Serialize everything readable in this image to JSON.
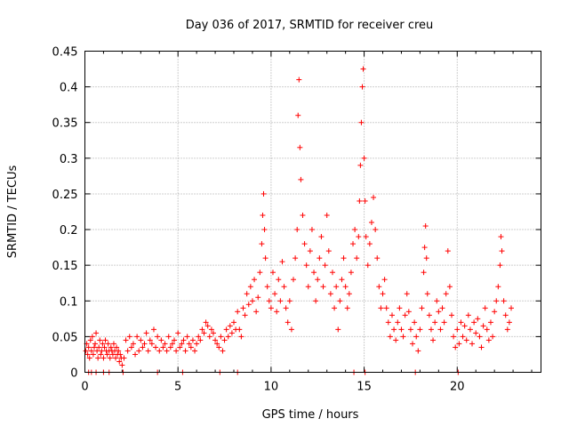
{
  "chart_data": {
    "type": "scatter",
    "title": "Day 036 of 2017, SRMTID for receiver creu",
    "xlabel": "GPS time / hours",
    "ylabel": "SRMTID / TECUs",
    "xlim": [
      0,
      24.5
    ],
    "ylim": [
      0,
      0.45
    ],
    "x_ticks": [
      0,
      5,
      10,
      15,
      20
    ],
    "x_tick_labels": [
      "0",
      "5",
      "10",
      "15",
      "20"
    ],
    "y_ticks": [
      0,
      0.05,
      0.1,
      0.15,
      0.2,
      0.25,
      0.3,
      0.35,
      0.4,
      0.45
    ],
    "y_tick_labels": [
      "0",
      "0.05",
      "0.1",
      "0.15",
      "0.2",
      "0.25",
      "0.3",
      "0.35",
      "0.4",
      "0.45"
    ],
    "grid": true,
    "marker": "plus",
    "color": "#ff0000",
    "series": [
      {
        "name": "SRMTID",
        "points": [
          [
            0.05,
            0.03
          ],
          [
            0.1,
            0.04
          ],
          [
            0.15,
            0.025
          ],
          [
            0.2,
            0.035
          ],
          [
            0.25,
            0.02
          ],
          [
            0.3,
            0.045
          ],
          [
            0.35,
            0.03
          ],
          [
            0.4,
            0.05
          ],
          [
            0.45,
            0.025
          ],
          [
            0.5,
            0.035
          ],
          [
            0.55,
            0.04
          ],
          [
            0.6,
            0.055
          ],
          [
            0.65,
            0.03
          ],
          [
            0.7,
            0.02
          ],
          [
            0.75,
            0.035
          ],
          [
            0.8,
            0.045
          ],
          [
            0.85,
            0.025
          ],
          [
            0.9,
            0.03
          ],
          [
            0.95,
            0.04
          ],
          [
            1.0,
            0.02
          ],
          [
            1.05,
            0.035
          ],
          [
            1.1,
            0.045
          ],
          [
            1.15,
            0.03
          ],
          [
            1.2,
            0.025
          ],
          [
            1.25,
            0.04
          ],
          [
            1.3,
            0.03
          ],
          [
            1.35,
            0.02
          ],
          [
            1.4,
            0.035
          ],
          [
            1.45,
            0.03
          ],
          [
            1.5,
            0.025
          ],
          [
            1.55,
            0.04
          ],
          [
            1.6,
            0.03
          ],
          [
            1.65,
            0.02
          ],
          [
            1.7,
            0.035
          ],
          [
            1.75,
            0.025
          ],
          [
            1.8,
            0.03
          ],
          [
            1.85,
            0.015
          ],
          [
            1.9,
            0.025
          ],
          [
            1.95,
            0.02
          ],
          [
            2.0,
            0.01
          ],
          [
            2.1,
            0.02
          ],
          [
            2.2,
            0.045
          ],
          [
            2.3,
            0.03
          ],
          [
            2.4,
            0.05
          ],
          [
            2.5,
            0.035
          ],
          [
            2.6,
            0.04
          ],
          [
            2.7,
            0.025
          ],
          [
            2.8,
            0.05
          ],
          [
            2.9,
            0.03
          ],
          [
            3.0,
            0.045
          ],
          [
            3.1,
            0.035
          ],
          [
            3.2,
            0.04
          ],
          [
            3.3,
            0.055
          ],
          [
            3.4,
            0.03
          ],
          [
            3.5,
            0.045
          ],
          [
            3.6,
            0.04
          ],
          [
            3.7,
            0.06
          ],
          [
            3.8,
            0.035
          ],
          [
            3.9,
            0.05
          ],
          [
            4.0,
            0.03
          ],
          [
            4.1,
            0.045
          ],
          [
            4.2,
            0.035
          ],
          [
            4.3,
            0.04
          ],
          [
            4.4,
            0.03
          ],
          [
            4.5,
            0.05
          ],
          [
            4.6,
            0.035
          ],
          [
            4.7,
            0.04
          ],
          [
            4.8,
            0.045
          ],
          [
            4.9,
            0.03
          ],
          [
            5.0,
            0.055
          ],
          [
            5.1,
            0.035
          ],
          [
            5.2,
            0.04
          ],
          [
            5.3,
            0.045
          ],
          [
            5.4,
            0.03
          ],
          [
            5.5,
            0.05
          ],
          [
            5.6,
            0.04
          ],
          [
            5.7,
            0.035
          ],
          [
            5.8,
            0.045
          ],
          [
            5.9,
            0.03
          ],
          [
            6.0,
            0.04
          ],
          [
            6.1,
            0.05
          ],
          [
            6.2,
            0.045
          ],
          [
            6.3,
            0.06
          ],
          [
            6.4,
            0.055
          ],
          [
            6.5,
            0.07
          ],
          [
            6.6,
            0.065
          ],
          [
            6.7,
            0.05
          ],
          [
            6.8,
            0.06
          ],
          [
            6.9,
            0.055
          ],
          [
            7.0,
            0.045
          ],
          [
            7.1,
            0.04
          ],
          [
            7.2,
            0.035
          ],
          [
            7.3,
            0.05
          ],
          [
            7.4,
            0.03
          ],
          [
            7.5,
            0.045
          ],
          [
            7.6,
            0.06
          ],
          [
            7.7,
            0.05
          ],
          [
            7.8,
            0.065
          ],
          [
            7.9,
            0.055
          ],
          [
            8.0,
            0.07
          ],
          [
            8.1,
            0.06
          ],
          [
            8.2,
            0.085
          ],
          [
            8.3,
            0.06
          ],
          [
            8.4,
            0.05
          ],
          [
            8.5,
            0.09
          ],
          [
            8.6,
            0.08
          ],
          [
            8.7,
            0.11
          ],
          [
            8.8,
            0.095
          ],
          [
            8.9,
            0.12
          ],
          [
            9.0,
            0.1
          ],
          [
            9.1,
            0.13
          ],
          [
            9.2,
            0.085
          ],
          [
            9.3,
            0.105
          ],
          [
            9.4,
            0.14
          ],
          [
            9.5,
            0.18
          ],
          [
            9.55,
            0.22
          ],
          [
            9.6,
            0.25
          ],
          [
            9.65,
            0.2
          ],
          [
            9.7,
            0.16
          ],
          [
            9.8,
            0.12
          ],
          [
            9.9,
            0.1
          ],
          [
            10.0,
            0.09
          ],
          [
            10.1,
            0.14
          ],
          [
            10.2,
            0.11
          ],
          [
            10.3,
            0.085
          ],
          [
            10.4,
            0.13
          ],
          [
            10.5,
            0.1
          ],
          [
            10.6,
            0.155
          ],
          [
            10.7,
            0.12
          ],
          [
            10.8,
            0.09
          ],
          [
            10.9,
            0.07
          ],
          [
            11.0,
            0.1
          ],
          [
            11.1,
            0.06
          ],
          [
            11.2,
            0.13
          ],
          [
            11.3,
            0.16
          ],
          [
            11.4,
            0.2
          ],
          [
            11.45,
            0.36
          ],
          [
            11.5,
            0.41
          ],
          [
            11.55,
            0.315
          ],
          [
            11.6,
            0.27
          ],
          [
            11.7,
            0.22
          ],
          [
            11.8,
            0.18
          ],
          [
            11.9,
            0.15
          ],
          [
            12.0,
            0.12
          ],
          [
            12.1,
            0.17
          ],
          [
            12.2,
            0.2
          ],
          [
            12.3,
            0.14
          ],
          [
            12.4,
            0.1
          ],
          [
            12.5,
            0.13
          ],
          [
            12.6,
            0.16
          ],
          [
            12.7,
            0.19
          ],
          [
            12.8,
            0.12
          ],
          [
            12.9,
            0.15
          ],
          [
            13.0,
            0.22
          ],
          [
            13.1,
            0.17
          ],
          [
            13.2,
            0.11
          ],
          [
            13.3,
            0.14
          ],
          [
            13.4,
            0.09
          ],
          [
            13.5,
            0.12
          ],
          [
            13.6,
            0.06
          ],
          [
            13.7,
            0.1
          ],
          [
            13.8,
            0.13
          ],
          [
            13.9,
            0.16
          ],
          [
            14.0,
            0.12
          ],
          [
            14.1,
            0.09
          ],
          [
            14.2,
            0.11
          ],
          [
            14.3,
            0.14
          ],
          [
            14.4,
            0.18
          ],
          [
            14.5,
            0.2
          ],
          [
            14.6,
            0.16
          ],
          [
            14.7,
            0.19
          ],
          [
            14.75,
            0.24
          ],
          [
            14.8,
            0.29
          ],
          [
            14.85,
            0.35
          ],
          [
            14.9,
            0.4
          ],
          [
            14.95,
            0.425
          ],
          [
            15.0,
            0.3
          ],
          [
            15.05,
            0.24
          ],
          [
            15.1,
            0.19
          ],
          [
            15.2,
            0.15
          ],
          [
            15.3,
            0.18
          ],
          [
            15.4,
            0.21
          ],
          [
            15.5,
            0.245
          ],
          [
            15.6,
            0.2
          ],
          [
            15.7,
            0.16
          ],
          [
            15.8,
            0.12
          ],
          [
            15.9,
            0.09
          ],
          [
            16.0,
            0.11
          ],
          [
            16.1,
            0.13
          ],
          [
            16.2,
            0.09
          ],
          [
            16.3,
            0.07
          ],
          [
            16.4,
            0.05
          ],
          [
            16.5,
            0.08
          ],
          [
            16.6,
            0.06
          ],
          [
            16.7,
            0.045
          ],
          [
            16.8,
            0.07
          ],
          [
            16.9,
            0.09
          ],
          [
            17.0,
            0.06
          ],
          [
            17.1,
            0.05
          ],
          [
            17.2,
            0.08
          ],
          [
            17.3,
            0.11
          ],
          [
            17.4,
            0.085
          ],
          [
            17.5,
            0.06
          ],
          [
            17.6,
            0.04
          ],
          [
            17.7,
            0.07
          ],
          [
            17.8,
            0.05
          ],
          [
            17.9,
            0.03
          ],
          [
            18.0,
            0.06
          ],
          [
            18.1,
            0.09
          ],
          [
            18.2,
            0.14
          ],
          [
            18.25,
            0.175
          ],
          [
            18.3,
            0.205
          ],
          [
            18.35,
            0.16
          ],
          [
            18.4,
            0.11
          ],
          [
            18.5,
            0.08
          ],
          [
            18.6,
            0.06
          ],
          [
            18.7,
            0.045
          ],
          [
            18.8,
            0.07
          ],
          [
            18.9,
            0.1
          ],
          [
            19.0,
            0.085
          ],
          [
            19.1,
            0.06
          ],
          [
            19.2,
            0.09
          ],
          [
            19.3,
            0.07
          ],
          [
            19.4,
            0.11
          ],
          [
            19.5,
            0.17
          ],
          [
            19.6,
            0.12
          ],
          [
            19.7,
            0.08
          ],
          [
            19.8,
            0.05
          ],
          [
            19.9,
            0.035
          ],
          [
            20.0,
            0.06
          ],
          [
            20.1,
            0.04
          ],
          [
            20.2,
            0.07
          ],
          [
            20.3,
            0.05
          ],
          [
            20.4,
            0.065
          ],
          [
            20.5,
            0.045
          ],
          [
            20.6,
            0.08
          ],
          [
            20.7,
            0.06
          ],
          [
            20.8,
            0.04
          ],
          [
            20.9,
            0.07
          ],
          [
            21.0,
            0.055
          ],
          [
            21.1,
            0.075
          ],
          [
            21.2,
            0.05
          ],
          [
            21.3,
            0.035
          ],
          [
            21.4,
            0.065
          ],
          [
            21.5,
            0.09
          ],
          [
            21.6,
            0.06
          ],
          [
            21.7,
            0.045
          ],
          [
            21.8,
            0.07
          ],
          [
            21.9,
            0.05
          ],
          [
            22.0,
            0.085
          ],
          [
            22.1,
            0.1
          ],
          [
            22.2,
            0.12
          ],
          [
            22.3,
            0.15
          ],
          [
            22.35,
            0.19
          ],
          [
            22.4,
            0.17
          ],
          [
            22.5,
            0.1
          ],
          [
            22.6,
            0.08
          ],
          [
            22.7,
            0.06
          ],
          [
            22.8,
            0.07
          ],
          [
            22.9,
            0.09
          ]
        ]
      }
    ],
    "baseline_markers_x": [
      0.2,
      0.35,
      0.6,
      1.0,
      1.3,
      2.05,
      3.9,
      5.25,
      7.25,
      8.2,
      14.45,
      15.05,
      17.75,
      20.05
    ]
  }
}
